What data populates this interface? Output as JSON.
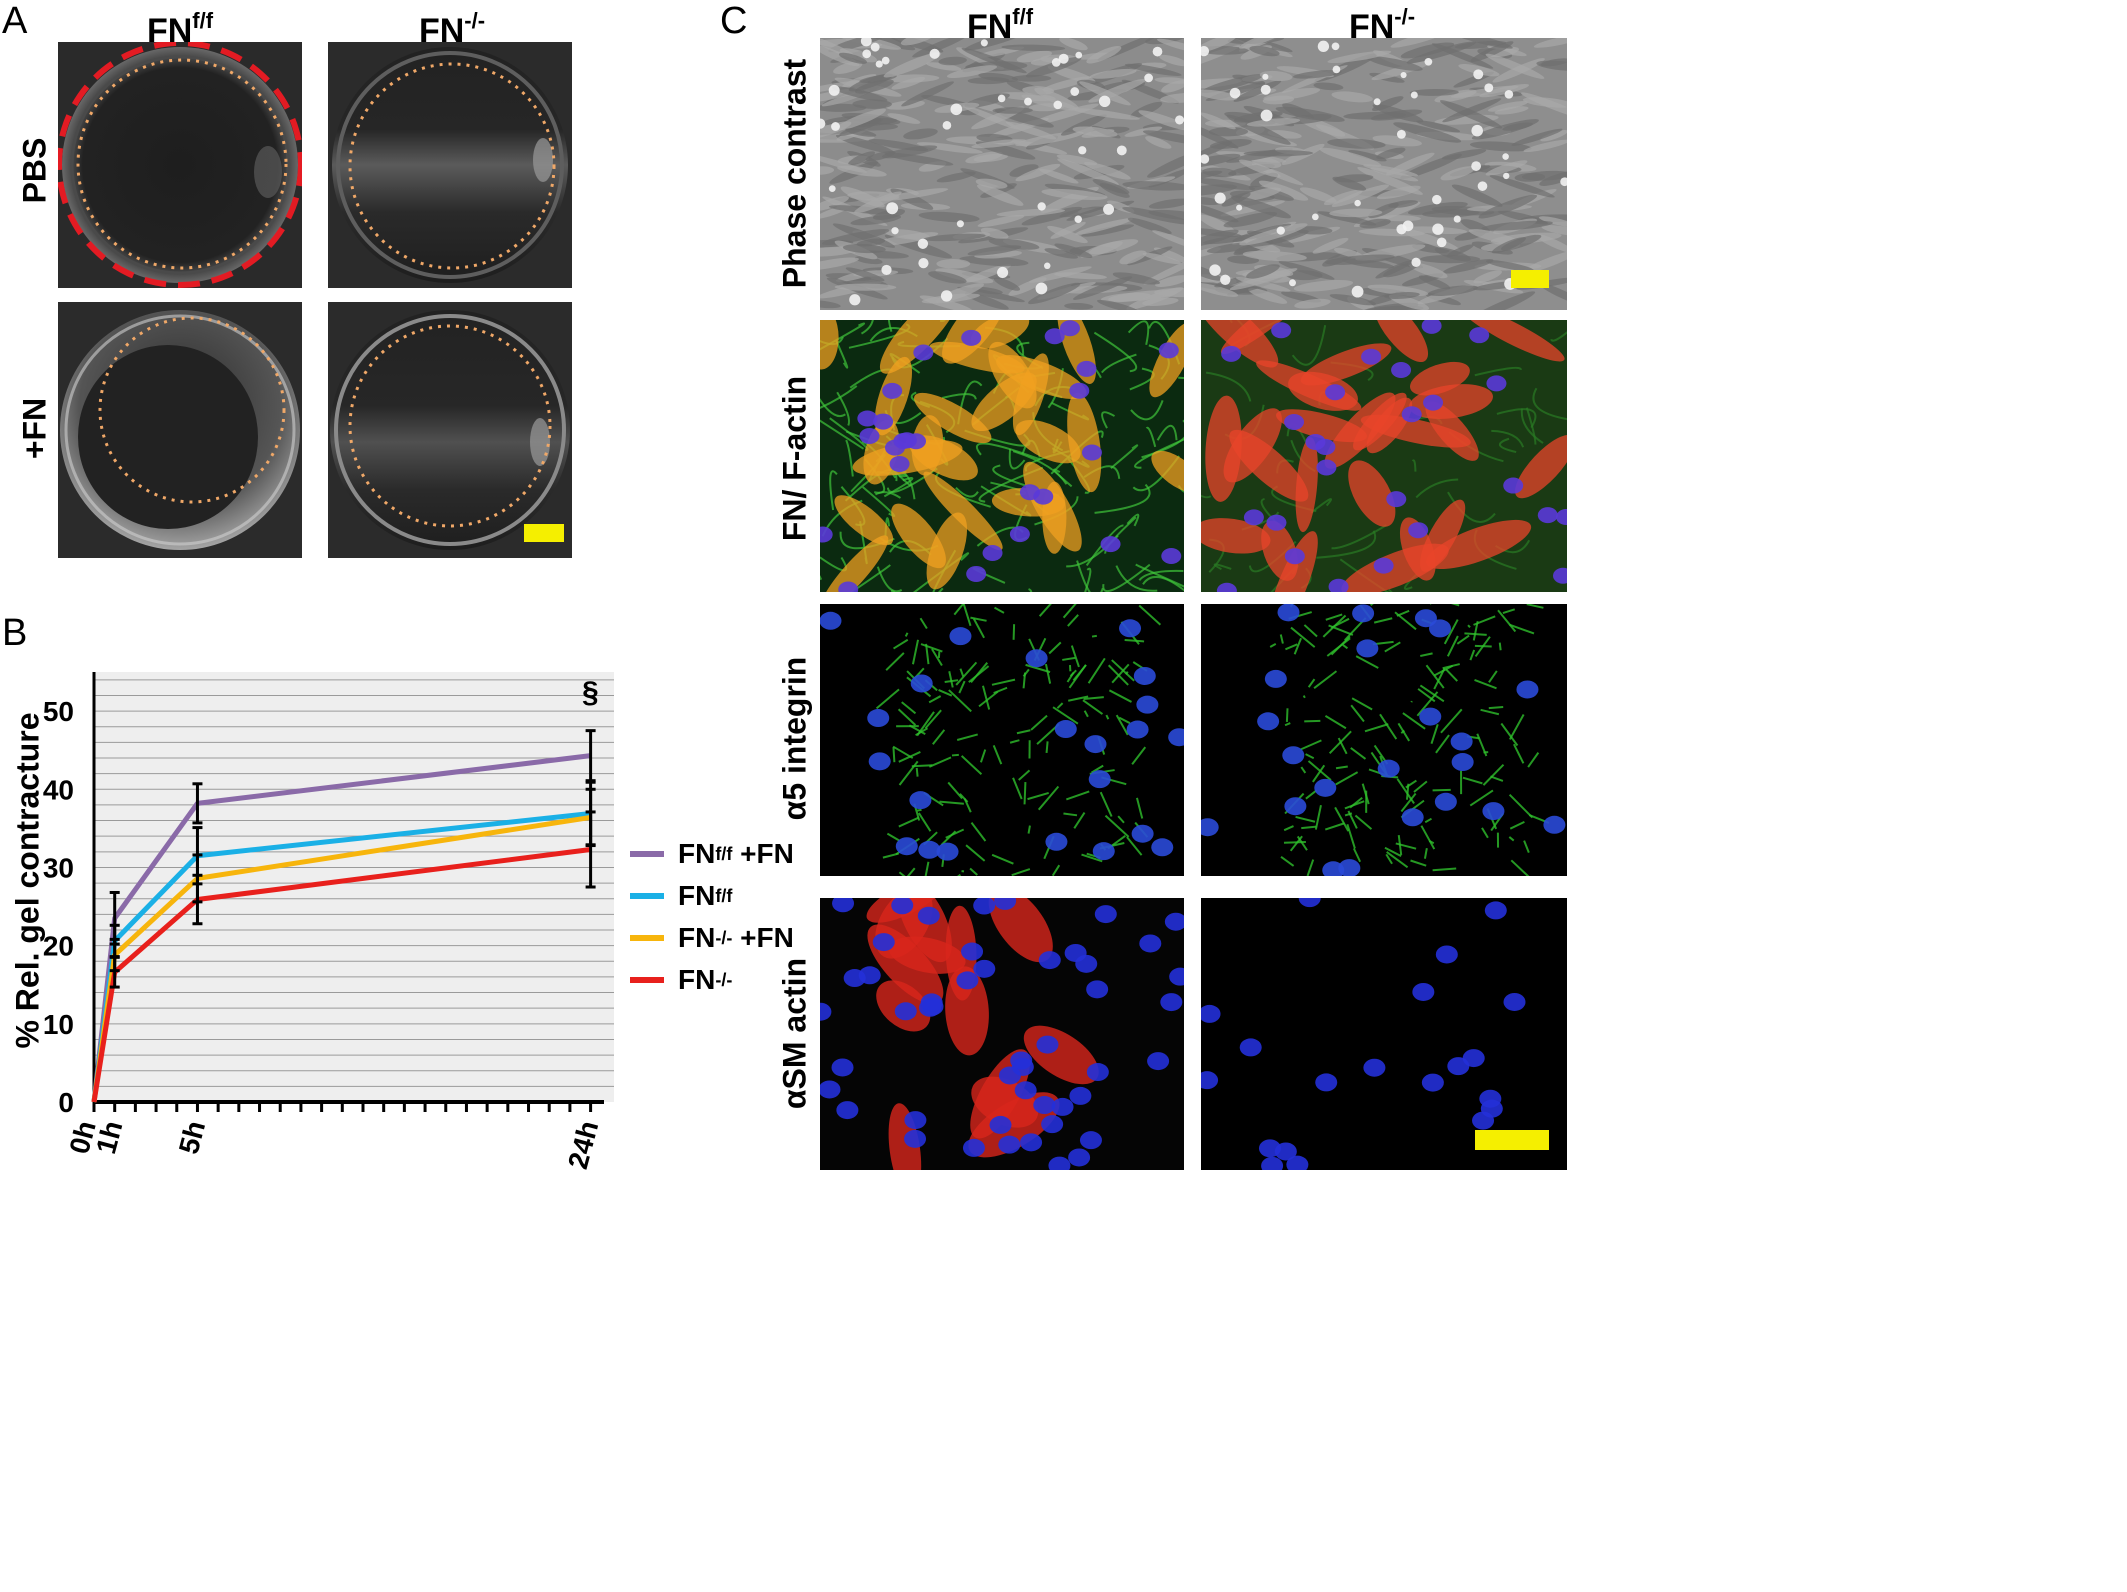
{
  "panel_a": {
    "letter": "A",
    "columns": [
      {
        "base": "FN",
        "sup": "f/f"
      },
      {
        "base": "FN",
        "sup": "-/-"
      }
    ],
    "rows": [
      "PBS",
      "+FN"
    ],
    "colors": {
      "dashed_outline": "#e31b23",
      "dotted_outline": "#f0a868",
      "scale_bar": "#f5ef00"
    }
  },
  "panel_b": {
    "letter": "B",
    "section_mark": "§",
    "legend": [
      {
        "base": "FN",
        "sup": "f/f",
        "suffix": " +FN",
        "color": "#8a6aa8"
      },
      {
        "base": "FN",
        "sup": "f/f",
        "suffix": "",
        "color": "#1ab0e6"
      },
      {
        "base": "FN",
        "sup": "-/-",
        "suffix": " +FN",
        "color": "#f7b50c"
      },
      {
        "base": "FN",
        "sup": "-/-",
        "suffix": "",
        "color": "#e8201c"
      }
    ]
  },
  "panel_c": {
    "letter": "C",
    "columns": [
      {
        "base": "FN",
        "sup": "f/f"
      },
      {
        "base": "FN",
        "sup": "-/-"
      }
    ],
    "rows": [
      "Phase contrast",
      "FN/ F-actin",
      "α5 integrin",
      "αSM actin"
    ],
    "colors": {
      "scale_bar": "#f5ef00"
    }
  },
  "chart_data": {
    "type": "line",
    "title": "",
    "xlabel": "",
    "ylabel": "% Rel. gel contracture",
    "x": [
      0,
      1,
      5,
      24
    ],
    "x_tick_labels": [
      "0h",
      "1h",
      "5h",
      "24h"
    ],
    "ylim": [
      0,
      55
    ],
    "y_ticks": [
      0,
      10,
      20,
      30,
      40,
      50
    ],
    "grid": true,
    "legend_position": "right",
    "series": [
      {
        "name": "FNf/f +FN",
        "color": "#8a6aa8",
        "values": [
          0,
          23.5,
          38.2,
          44.3
        ],
        "error": [
          0,
          3.3,
          2.5,
          3.2
        ]
      },
      {
        "name": "FNf/f",
        "color": "#1ab0e6",
        "values": [
          0,
          20.6,
          31.5,
          36.9
        ],
        "error": [
          0,
          2.0,
          3.6,
          4.0
        ]
      },
      {
        "name": "FN-/- +FN",
        "color": "#f7b50c",
        "values": [
          0,
          18.8,
          28.6,
          36.4
        ],
        "error": [
          0,
          2.0,
          3.0,
          3.6
        ]
      },
      {
        "name": "FN-/-",
        "color": "#e8201c",
        "values": [
          0,
          16.6,
          25.9,
          32.3
        ],
        "error": [
          0,
          1.9,
          3.1,
          4.8
        ]
      }
    ],
    "annotations": [
      "§"
    ]
  }
}
